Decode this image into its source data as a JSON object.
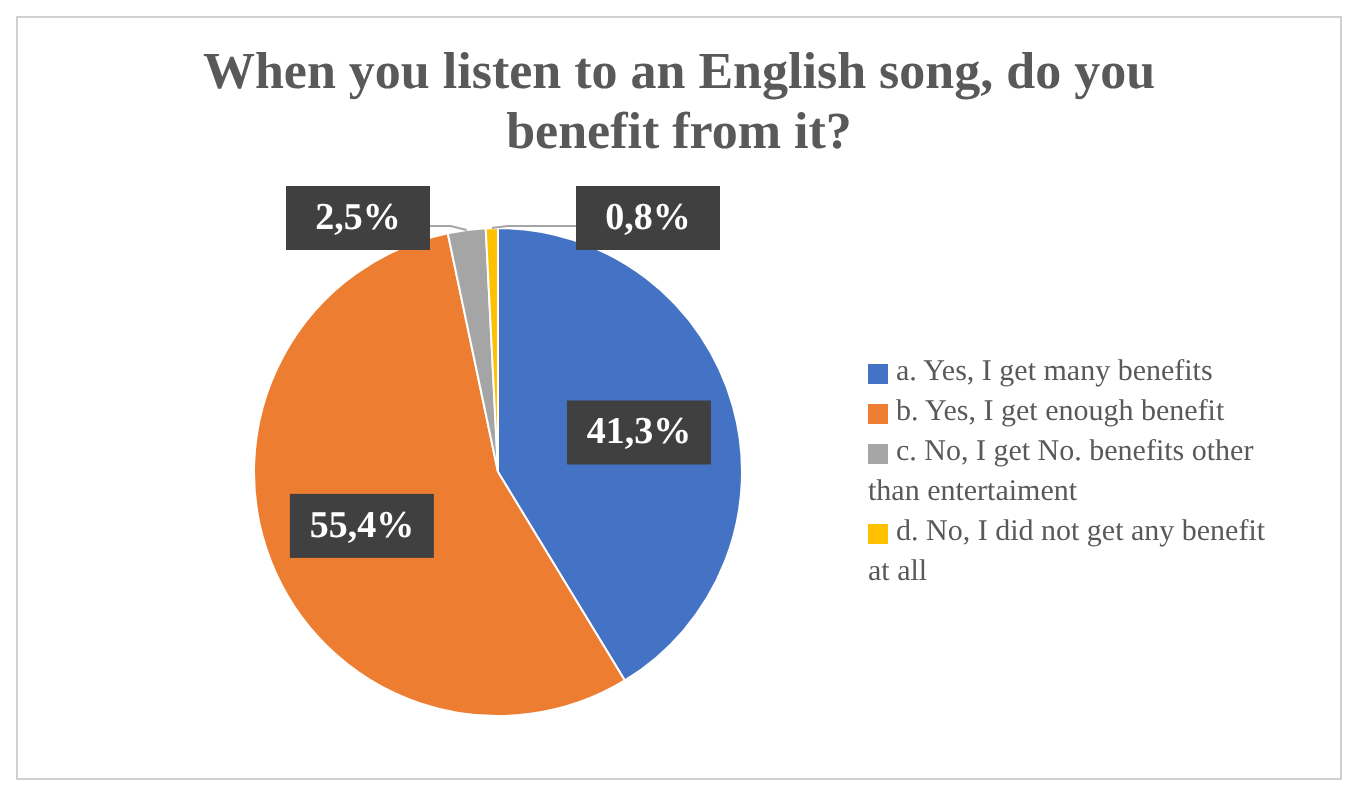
{
  "chart_data": {
    "type": "pie",
    "title": "When you listen to an English song, do you benefit from it?",
    "categories": [
      "a. Yes, I get many benefits",
      "b. Yes, I get enough benefit",
      "c. No, I get No. benefits other than entertaiment",
      "d. No, I did not get any benefit at all"
    ],
    "values": [
      41.3,
      55.4,
      2.5,
      0.8
    ],
    "value_labels": [
      "41,3%",
      "55,4%",
      "2,5%",
      "0,8%"
    ],
    "colors": [
      "#4472c4",
      "#ed7d31",
      "#a5a5a5",
      "#ffc000"
    ],
    "legend": "right"
  }
}
